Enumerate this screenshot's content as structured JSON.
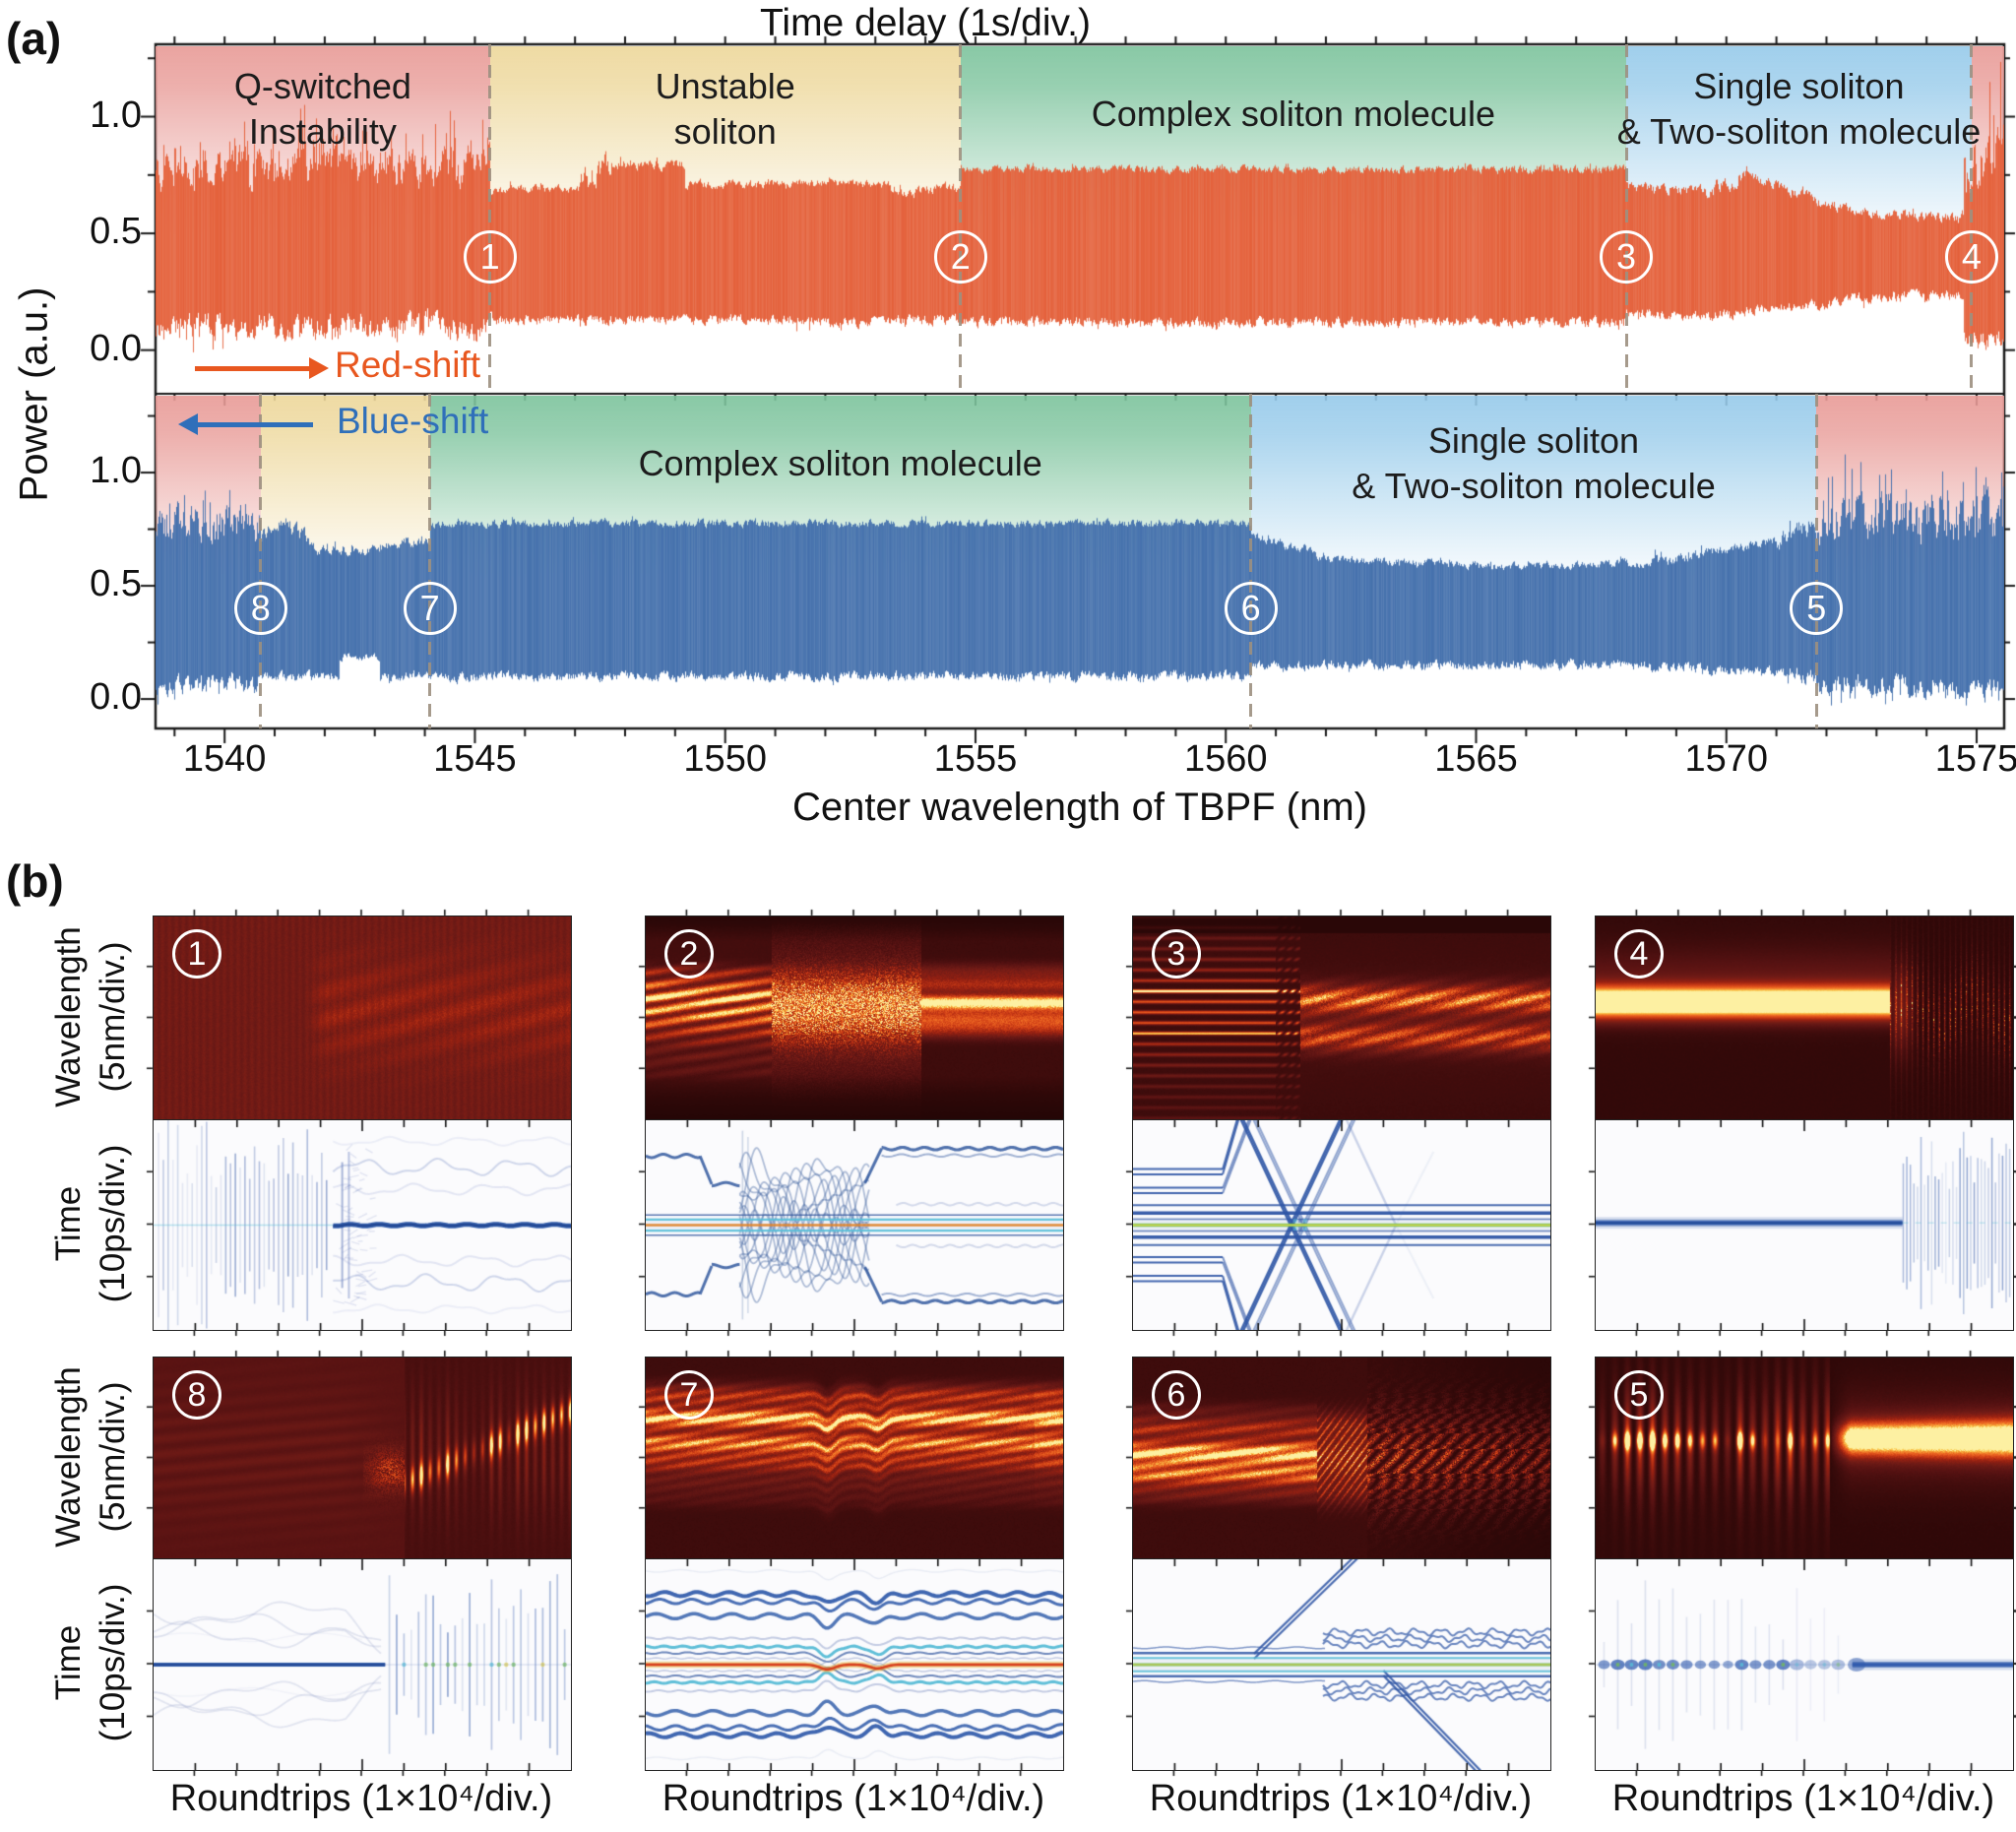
{
  "panel_a": {
    "corner_label": "(a)",
    "title": "Time delay (1s/div.)",
    "x_axis": {
      "label": "Center wavelength of TBPF (nm)",
      "ticks": [
        1540,
        1545,
        1550,
        1555,
        1560,
        1565,
        1570,
        1575
      ],
      "range_nm": [
        1538.62,
        1575.55
      ]
    },
    "y_axis": {
      "label": "Power (a.u.)",
      "ticks": [
        {
          "v": 0.0,
          "t": "0.0"
        },
        {
          "v": 0.5,
          "t": "0.5"
        },
        {
          "v": 1.0,
          "t": "1.0"
        }
      ]
    },
    "arrows": {
      "red": {
        "label": "Red-shift",
        "color": "#E8571F",
        "direction": "right"
      },
      "blue": {
        "label": "Blue-shift",
        "color": "#2F6FBA",
        "direction": "left"
      }
    },
    "colors": {
      "red_trace": "#E4603A",
      "blue_trace": "#4470AC",
      "dashed_line": "#9D9080",
      "band_red": "#E89A96",
      "band_yellow": "#EDD79A",
      "band_green": "#7CC39C",
      "band_blue": "#96CAEA",
      "marker_circle": "#FFFFFF"
    }
  },
  "panel_b": {
    "corner_label": "(b)",
    "x_label": "Roundtrips (1×10⁴/div.)",
    "wavelength_label": "Wavelength\n(5nm/div.)",
    "time_label": "Time\n(10ps/div.)",
    "columns": [
      {
        "top_number": "1",
        "bottom_number": "8",
        "top_heat": "h1",
        "top_time": "t1",
        "bottom_heat": "h8",
        "bottom_time": "t8"
      },
      {
        "top_number": "2",
        "bottom_number": "7",
        "top_heat": "h2",
        "top_time": "t2",
        "bottom_heat": "h7",
        "bottom_time": "t7"
      },
      {
        "top_number": "3",
        "bottom_number": "6",
        "top_heat": "h3",
        "top_time": "t3",
        "bottom_heat": "h6",
        "bottom_time": "t6"
      },
      {
        "top_number": "4",
        "bottom_number": "5",
        "top_heat": "h4",
        "top_time": "t4",
        "bottom_heat": "h5",
        "bottom_time": "t5"
      }
    ]
  },
  "chart_data": [
    {
      "id": "a-top",
      "type": "area",
      "series_name": "red-shift sweep power trace",
      "color_key": "red_trace",
      "xlabel": "Center wavelength of TBPF (nm)",
      "ylabel": "Power (a.u.)",
      "x_range_nm": [
        1538.62,
        1575.55
      ],
      "y_ticks": [
        0.0,
        0.5,
        1.0
      ],
      "regions": [
        {
          "band": "band_red",
          "x0": 1538.62,
          "x1": 1545.3,
          "line1": "Q-switched",
          "line2": "Instability"
        },
        {
          "band": "band_yellow",
          "x0": 1545.3,
          "x1": 1554.7,
          "line1": "Unstable",
          "line2": "soliton"
        },
        {
          "band": "band_green",
          "x0": 1554.7,
          "x1": 1568.0,
          "line1": "Complex soliton molecule",
          "line2": ""
        },
        {
          "band": "band_blue",
          "x0": 1568.0,
          "x1": 1574.9,
          "line1": "Single soliton",
          "line2": "& Two-soliton molecule"
        },
        {
          "band": "band_red",
          "x0": 1574.9,
          "x1": 1575.55,
          "line1": "",
          "line2": ""
        }
      ],
      "markers": [
        {
          "n": "1",
          "nm": 1545.3
        },
        {
          "n": "2",
          "nm": 1554.7
        },
        {
          "n": "3",
          "nm": 1568.0
        },
        {
          "n": "4",
          "nm": 1574.9
        }
      ],
      "envelope_segments": [
        [
          1538.62,
          1545.3,
          0.78,
          0.78,
          0.07,
          0.17,
          0.1,
          0.1,
          0.05,
          0.07
        ],
        [
          1545.3,
          1547.1,
          0.69,
          0.69,
          0.015,
          0.03,
          0.13,
          0.13,
          0.02,
          0.02
        ],
        [
          1547.1,
          1547.75,
          0.7,
          0.83,
          0.05,
          0.05,
          0.12,
          0.13,
          0.02,
          0.02
        ],
        [
          1547.75,
          1549.2,
          0.8,
          0.79,
          0.02,
          0.02,
          0.13,
          0.13,
          0.02,
          0.02
        ],
        [
          1549.2,
          1551.4,
          0.71,
          0.71,
          0.015,
          0.02,
          0.13,
          0.13,
          0.02,
          0.02
        ],
        [
          1551.4,
          1553.3,
          0.72,
          0.71,
          0.015,
          0.02,
          0.12,
          0.12,
          0.02,
          0.05
        ],
        [
          1553.3,
          1554.7,
          0.67,
          0.7,
          0.02,
          0.02,
          0.13,
          0.13,
          0.02,
          0.02
        ],
        [
          1554.7,
          1568.0,
          0.775,
          0.775,
          0.015,
          0.02,
          0.12,
          0.12,
          0.02,
          0.02
        ],
        [
          1568.0,
          1569.6,
          0.7,
          0.68,
          0.02,
          0.03,
          0.15,
          0.15,
          0.02,
          0.02
        ],
        [
          1569.6,
          1570.4,
          0.68,
          0.745,
          0.03,
          0.03,
          0.15,
          0.16,
          0.02,
          0.02
        ],
        [
          1570.4,
          1572.3,
          0.745,
          0.61,
          0.02,
          0.02,
          0.17,
          0.2,
          0.02,
          0.02
        ],
        [
          1572.3,
          1574.75,
          0.6,
          0.565,
          0.02,
          0.02,
          0.22,
          0.24,
          0.02,
          0.02
        ],
        [
          1574.75,
          1575.55,
          0.82,
          0.85,
          0.12,
          0.28,
          0.06,
          0.05,
          0.04,
          0.05
        ]
      ]
    },
    {
      "id": "a-bottom",
      "type": "area",
      "series_name": "blue-shift sweep power trace",
      "color_key": "blue_trace",
      "xlabel": "Center wavelength of TBPF (nm)",
      "ylabel": "Power (a.u.)",
      "x_range_nm": [
        1538.62,
        1575.55
      ],
      "y_ticks": [
        0.0,
        0.5,
        1.0
      ],
      "regions": [
        {
          "band": "band_red",
          "x0": 1538.62,
          "x1": 1540.72,
          "line1": "",
          "line2": ""
        },
        {
          "band": "band_yellow",
          "x0": 1540.72,
          "x1": 1544.1,
          "line1": "",
          "line2": ""
        },
        {
          "band": "band_green",
          "x0": 1544.1,
          "x1": 1560.5,
          "line1": "Complex soliton molecule",
          "line2": ""
        },
        {
          "band": "band_blue",
          "x0": 1560.5,
          "x1": 1571.8,
          "line1": "Single soliton",
          "line2": "& Two-soliton molecule"
        },
        {
          "band": "band_red",
          "x0": 1571.8,
          "x1": 1575.55,
          "line1": "",
          "line2": ""
        }
      ],
      "markers": [
        {
          "n": "8",
          "nm": 1540.72
        },
        {
          "n": "7",
          "nm": 1544.1
        },
        {
          "n": "6",
          "nm": 1560.5
        },
        {
          "n": "5",
          "nm": 1571.8
        }
      ],
      "envelope_segments": [
        [
          1538.62,
          1540.72,
          0.78,
          0.78,
          0.07,
          0.15,
          0.07,
          0.07,
          0.04,
          0.05
        ],
        [
          1540.72,
          1541.15,
          0.7,
          0.79,
          0.03,
          0.03,
          0.1,
          0.1,
          0.02,
          0.02
        ],
        [
          1541.15,
          1541.85,
          0.79,
          0.67,
          0.03,
          0.03,
          0.1,
          0.1,
          0.02,
          0.02
        ],
        [
          1541.85,
          1542.3,
          0.66,
          0.66,
          0.02,
          0.02,
          0.1,
          0.1,
          0.02,
          0.02
        ],
        [
          1542.3,
          1543.1,
          0.66,
          0.66,
          0.02,
          0.02,
          0.19,
          0.19,
          0.015,
          0.01
        ],
        [
          1543.1,
          1544.1,
          0.67,
          0.7,
          0.02,
          0.02,
          0.1,
          0.1,
          0.02,
          0.02
        ],
        [
          1544.1,
          1560.5,
          0.775,
          0.775,
          0.015,
          0.02,
          0.1,
          0.1,
          0.02,
          0.02
        ],
        [
          1560.5,
          1562.0,
          0.72,
          0.63,
          0.02,
          0.02,
          0.14,
          0.15,
          0.02,
          0.02
        ],
        [
          1562.0,
          1565.5,
          0.62,
          0.585,
          0.015,
          0.02,
          0.15,
          0.15,
          0.02,
          0.02
        ],
        [
          1565.5,
          1568.5,
          0.585,
          0.6,
          0.015,
          0.02,
          0.15,
          0.15,
          0.02,
          0.02
        ],
        [
          1568.5,
          1571.0,
          0.6,
          0.7,
          0.02,
          0.03,
          0.14,
          0.12,
          0.02,
          0.02
        ],
        [
          1571.0,
          1571.8,
          0.7,
          0.78,
          0.04,
          0.07,
          0.12,
          0.1,
          0.03,
          0.03
        ],
        [
          1571.8,
          1575.55,
          0.8,
          0.8,
          0.09,
          0.2,
          0.06,
          0.05,
          0.04,
          0.06
        ]
      ]
    },
    {
      "id": "b",
      "type": "heatmap",
      "xlabel": "Roundtrips (1×10⁴/div.)",
      "spectral_ylabel": "Wavelength (5nm/div.)",
      "temporal_ylabel": "Time (10ps/div.)",
      "spectral_colormap": "dark-red hot",
      "temporal_colormap": "white-blue jet",
      "panels": [
        {
          "n": "1",
          "spectral": "uniform dim maroon spectrum, faint broadband brightening after ~40% of roundtrips",
          "temporal": "dense Q-switched pulse comb over left 40%, then collapse to one stable soliton line with faint symmetric side branches"
        },
        {
          "n": "2",
          "spectral": "horizontal spectral fringes, chaotic bright interference in middle, reordered bright bands on right",
          "temporal": "outer bound-soliton traces step inward, chaotic vibration in middle, persistent cyan/orange center line"
        },
        {
          "n": "3",
          "spectral": "regular bright fringe comb blurring into two broad red bands",
          "temporal": "two soliton pairs leave, cross in an X/bow-tie around the stationary central molecule, then only the molecule remains"
        },
        {
          "n": "4",
          "spectral": "single narrow bright red band, disintegrating into speckled bursts at ~72%",
          "temporal": "single soliton line exploding into a Q-switched vertical pulse comb at ~72%"
        },
        {
          "n": "8",
          "spectral": "dim rippled spectrum, right half develops bright vertical burst streaks",
          "temporal": "central line with faint wavy side strands, breaks into a pulsating burst comb with colored knots"
        },
        {
          "n": "7",
          "spectral": "strong steady multi-band molecule spectrum with two kinks",
          "temporal": "stationary complex soliton molecule: nested wavy blue/cyan bands around a red-hot center line"
        },
        {
          "n": "6",
          "spectral": "bright band spectrum breaking into chevron ripples then turbulence",
          "temporal": "molecule line splits, branches diverge to top and bottom, wavy bound strands persist on right"
        },
        {
          "n": "5",
          "spectral": "pulsating vertical streaks with bright knots settling into a smooth red band",
          "temporal": "bead-like pulsation chain condensing into a stable single-soliton line"
        }
      ]
    }
  ]
}
